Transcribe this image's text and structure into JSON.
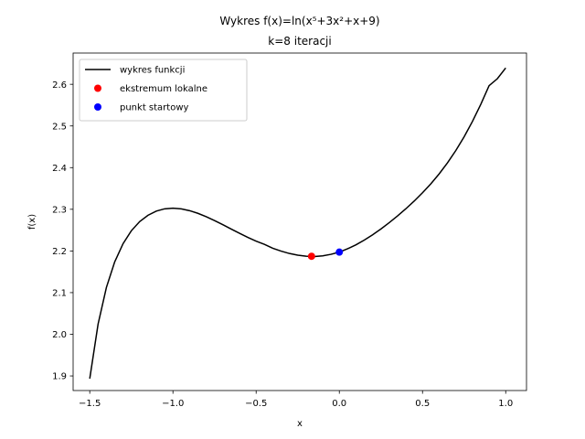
{
  "chart_data": {
    "type": "line",
    "title": "Wykres f(x)=ln(x⁵+3x²+x+9)",
    "subtitle": "k=8 iteracji",
    "xlabel": "x",
    "ylabel": "f(x)",
    "xlim": [
      -1.6,
      1.125
    ],
    "ylim": [
      1.865,
      2.675
    ],
    "x_ticks": [
      {
        "value": -1.5,
        "label": "−1.5"
      },
      {
        "value": -1.0,
        "label": "−1.0"
      },
      {
        "value": -0.5,
        "label": "−0.5"
      },
      {
        "value": 0.0,
        "label": "0.0"
      },
      {
        "value": 0.5,
        "label": "0.5"
      },
      {
        "value": 1.0,
        "label": "1.0"
      }
    ],
    "y_ticks": [
      {
        "value": 1.9,
        "label": "1.9"
      },
      {
        "value": 2.0,
        "label": "2.0"
      },
      {
        "value": 2.1,
        "label": "2.1"
      },
      {
        "value": 2.2,
        "label": "2.2"
      },
      {
        "value": 2.3,
        "label": "2.3"
      },
      {
        "value": 2.4,
        "label": "2.4"
      },
      {
        "value": 2.5,
        "label": "2.5"
      },
      {
        "value": 2.6,
        "label": "2.6"
      }
    ],
    "grid": false,
    "legend_position": "top-left",
    "series": [
      {
        "name": "wykres funkcji",
        "kind": "line",
        "color": "#000000",
        "x": [
          -1.5,
          -1.45,
          -1.4,
          -1.35,
          -1.3,
          -1.25,
          -1.2,
          -1.15,
          -1.1,
          -1.05,
          -1.0,
          -0.95,
          -0.9,
          -0.85,
          -0.8,
          -0.75,
          -0.7,
          -0.65,
          -0.6,
          -0.55,
          -0.5,
          -0.45,
          -0.4,
          -0.35,
          -0.3,
          -0.25,
          -0.2,
          -0.15,
          -0.1,
          -0.05,
          0.0,
          0.05,
          0.1,
          0.15,
          0.2,
          0.25,
          0.3,
          0.35,
          0.4,
          0.45,
          0.5,
          0.55,
          0.6,
          0.65,
          0.7,
          0.75,
          0.8,
          0.85,
          0.9,
          0.95,
          1.0
        ],
        "y": [
          1.8936,
          2.0244,
          2.1124,
          2.1738,
          2.2174,
          2.2485,
          2.2705,
          2.2857,
          2.2957,
          2.3011,
          2.3026,
          2.301,
          2.2967,
          2.2903,
          2.2822,
          2.2729,
          2.2629,
          2.2526,
          2.2424,
          2.2326,
          2.2236,
          2.2158,
          2.2064,
          2.1996,
          2.1939,
          2.1898,
          2.1873,
          2.1867,
          2.1882,
          2.1919,
          2.1972,
          2.2053,
          2.2148,
          2.2261,
          2.2388,
          2.2528,
          2.2679,
          2.2841,
          2.3013,
          2.3197,
          2.3396,
          2.3612,
          2.385,
          2.4114,
          2.4409,
          2.4739,
          2.5108,
          2.5517,
          2.5967,
          2.6135,
          2.6391
        ]
      },
      {
        "name": "ekstremum lokalne",
        "kind": "point",
        "color": "#ff0000",
        "x": [
          -0.167
        ],
        "y": [
          2.1872
        ]
      },
      {
        "name": "punkt startowy",
        "kind": "point",
        "color": "#0000ff",
        "x": [
          0.0
        ],
        "y": [
          2.1972
        ]
      }
    ]
  }
}
